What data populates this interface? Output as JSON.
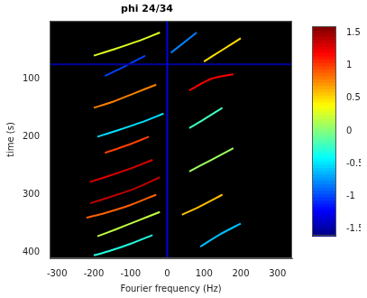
{
  "chart_data": {
    "type": "heatmap",
    "title": "phi 24/34",
    "x_label": "Fourier frequency (Hz)",
    "y_label": "time (s)",
    "xlim": [
      -320,
      340
    ],
    "xticks": [
      -300,
      -200,
      -100,
      0,
      100,
      200,
      300
    ],
    "ylim": [
      0,
      410
    ],
    "yticks": [
      100,
      200,
      300,
      400
    ],
    "grid": false,
    "colorbar": {
      "range": [
        -1.6,
        1.6
      ],
      "ticks": [
        -1.5,
        -1,
        -0.5,
        0,
        0.5,
        1,
        1.5
      ]
    },
    "traces": [
      {
        "points": [
          [
            0,
            0
          ],
          [
            0,
            410
          ]
        ],
        "value": -1.3
      },
      {
        "points": [
          [
            -320,
            75
          ],
          [
            340,
            75
          ]
        ],
        "value": -1.5
      },
      {
        "points": [
          [
            -20,
            20
          ],
          [
            -80,
            35
          ],
          [
            -150,
            50
          ],
          [
            -200,
            60
          ]
        ],
        "value": 0.3
      },
      {
        "points": [
          [
            -60,
            60
          ],
          [
            -120,
            80
          ],
          [
            -170,
            95
          ]
        ],
        "value": -1.0
      },
      {
        "points": [
          [
            -30,
            110
          ],
          [
            -90,
            125
          ],
          [
            -150,
            140
          ],
          [
            -200,
            150
          ]
        ],
        "value": 0.8
      },
      {
        "points": [
          [
            -10,
            160
          ],
          [
            -70,
            175
          ],
          [
            -140,
            190
          ],
          [
            -190,
            200
          ]
        ],
        "value": -0.5
      },
      {
        "points": [
          [
            -50,
            200
          ],
          [
            -110,
            215
          ],
          [
            -170,
            228
          ]
        ],
        "value": 1.0
      },
      {
        "points": [
          [
            -40,
            240
          ],
          [
            -100,
            255
          ],
          [
            -160,
            268
          ],
          [
            -210,
            278
          ]
        ],
        "value": 1.3
      },
      {
        "points": [
          [
            -20,
            270
          ],
          [
            -90,
            290
          ],
          [
            -160,
            305
          ],
          [
            -210,
            315
          ]
        ],
        "value": 1.4
      },
      {
        "points": [
          [
            -30,
            300
          ],
          [
            -100,
            318
          ],
          [
            -170,
            332
          ],
          [
            -220,
            340
          ]
        ],
        "value": 0.9
      },
      {
        "points": [
          [
            -20,
            330
          ],
          [
            -80,
            345
          ],
          [
            -140,
            360
          ],
          [
            -190,
            372
          ]
        ],
        "value": 0.2
      },
      {
        "points": [
          [
            -40,
            370
          ],
          [
            -100,
            385
          ],
          [
            -160,
            398
          ],
          [
            -200,
            405
          ]
        ],
        "value": -0.3
      },
      {
        "points": [
          [
            80,
            20
          ],
          [
            40,
            40
          ],
          [
            10,
            55
          ]
        ],
        "value": -0.8
      },
      {
        "points": [
          [
            200,
            30
          ],
          [
            150,
            50
          ],
          [
            100,
            70
          ]
        ],
        "value": 0.5
      },
      {
        "points": [
          [
            60,
            120
          ],
          [
            120,
            100
          ],
          [
            180,
            92
          ]
        ],
        "value": 1.2
      },
      {
        "points": [
          [
            150,
            150
          ],
          [
            100,
            170
          ],
          [
            60,
            185
          ]
        ],
        "value": -0.2
      },
      {
        "points": [
          [
            180,
            220
          ],
          [
            120,
            240
          ],
          [
            60,
            260
          ]
        ],
        "value": 0.1
      },
      {
        "points": [
          [
            150,
            300
          ],
          [
            90,
            320
          ],
          [
            40,
            335
          ]
        ],
        "value": 0.6
      },
      {
        "points": [
          [
            200,
            350
          ],
          [
            140,
            370
          ],
          [
            90,
            390
          ]
        ],
        "value": -0.6
      }
    ]
  }
}
